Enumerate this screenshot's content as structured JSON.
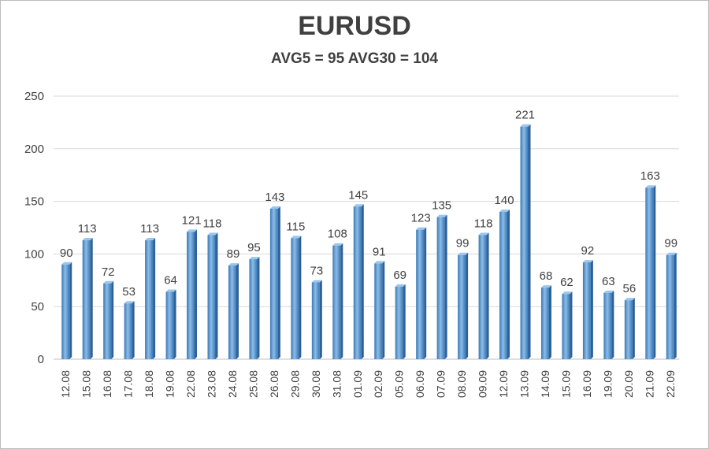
{
  "chart_data": {
    "type": "bar",
    "title": "EURUSD",
    "subtitle": "AVG5 = 95 AVG30 = 104",
    "categories": [
      "12.08",
      "15.08",
      "16.08",
      "17.08",
      "18.08",
      "19.08",
      "22.08",
      "23.08",
      "24.08",
      "25.08",
      "26.08",
      "29.08",
      "30.08",
      "31.08",
      "01.09",
      "02.09",
      "05.09",
      "06.09",
      "07.09",
      "08.09",
      "09.09",
      "12.09",
      "13.09",
      "14.09",
      "15.09",
      "16.09",
      "19.09",
      "20.09",
      "21.09",
      "22.09"
    ],
    "values": [
      90,
      113,
      72,
      53,
      113,
      64,
      121,
      118,
      89,
      95,
      143,
      115,
      73,
      108,
      145,
      91,
      69,
      123,
      135,
      99,
      118,
      140,
      221,
      68,
      62,
      92,
      63,
      56,
      163,
      99
    ],
    "xlabel": "",
    "ylabel": "",
    "ylim": [
      0,
      250
    ],
    "yticks": [
      0,
      50,
      100,
      150,
      200,
      250
    ],
    "grid": true,
    "bar_color": "#5b9bd5",
    "legend": "none"
  }
}
